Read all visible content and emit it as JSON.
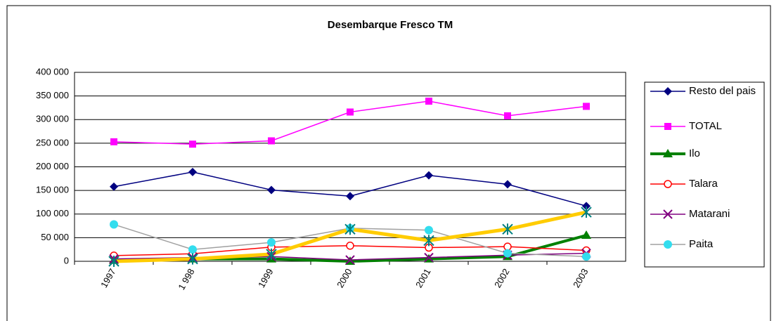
{
  "chart_data": {
    "type": "line",
    "title": "Desembarque Fresco TM",
    "categories": [
      "1997",
      "1 998",
      "1999",
      "2000",
      "2001",
      "2002",
      "2003"
    ],
    "series": [
      {
        "name": "Resto del pais",
        "color": "#000080",
        "marker": "diamond",
        "values": [
          158000,
          189000,
          151000,
          138000,
          182000,
          163000,
          117000
        ]
      },
      {
        "name": "TOTAL",
        "color": "#ff00ff",
        "marker": "square",
        "values": [
          253000,
          248000,
          255000,
          316000,
          339000,
          308000,
          328000
        ]
      },
      {
        "name": "Ilo",
        "color": "#008000",
        "marker": "triangle",
        "values": [
          2000,
          5000,
          5000,
          0,
          5000,
          10000,
          55000
        ]
      },
      {
        "name": "Talara",
        "color": "#ff0000",
        "marker": "circle-open",
        "values": [
          12000,
          16000,
          30000,
          33000,
          29000,
          31000,
          23000
        ]
      },
      {
        "name": "Matarani",
        "color": "#800080",
        "marker": "cross",
        "values": [
          5000,
          8000,
          10000,
          3000,
          8000,
          13000,
          17000
        ]
      },
      {
        "name": "Paita",
        "color": "#a0a0a0",
        "marker": "circle-filled",
        "values": [
          78000,
          25000,
          40000,
          70000,
          66000,
          17000,
          10000
        ]
      },
      {
        "color": "#ffcc00",
        "marker": "asterisk",
        "values": [
          0,
          5000,
          15000,
          68000,
          44000,
          68000,
          104000
        ]
      }
    ],
    "ylim": [
      0,
      400000
    ],
    "yticks": [
      0,
      {
        "value": 50000,
        "label": "50 000"
      },
      {
        "value": 100000,
        "label": "100 000"
      },
      {
        "value": 150000,
        "label": "150 000"
      },
      {
        "value": 200000,
        "label": "200 000"
      },
      {
        "value": 250000,
        "label": "250 000"
      },
      {
        "value": 300000,
        "label": "300 000"
      },
      {
        "value": 350000,
        "label": "350 000"
      },
      {
        "value": 400000,
        "label": "400 000"
      }
    ],
    "grid": true
  }
}
